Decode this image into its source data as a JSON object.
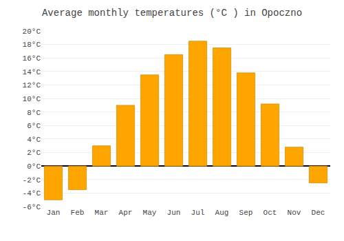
{
  "chart_data": {
    "type": "bar",
    "title": "Average monthly temperatures (°C ) in Opoczno",
    "categories": [
      "Jan",
      "Feb",
      "Mar",
      "Apr",
      "May",
      "Jun",
      "Jul",
      "Aug",
      "Sep",
      "Oct",
      "Nov",
      "Dec"
    ],
    "values": [
      -5.0,
      -3.5,
      3.0,
      9.0,
      13.5,
      16.5,
      18.5,
      17.5,
      13.8,
      9.2,
      2.8,
      -2.5
    ],
    "color": "#FFA500",
    "ylim": [
      -6,
      20
    ],
    "yticks": [
      {
        "value": -6,
        "label": "-6°C"
      },
      {
        "value": -4,
        "label": "-4°C"
      },
      {
        "value": -2,
        "label": "-2°C"
      },
      {
        "value": 0,
        "label": "0°C"
      },
      {
        "value": 2,
        "label": "2°C"
      },
      {
        "value": 4,
        "label": "4°C"
      },
      {
        "value": 6,
        "label": "6°C"
      },
      {
        "value": 8,
        "label": "8°C"
      },
      {
        "value": 10,
        "label": "10°C"
      },
      {
        "value": 12,
        "label": "12°C"
      },
      {
        "value": 14,
        "label": "14°C"
      },
      {
        "value": 16,
        "label": "16°C"
      },
      {
        "value": 18,
        "label": "18°C"
      },
      {
        "value": 20,
        "label": "20°C"
      }
    ],
    "grid": true
  }
}
